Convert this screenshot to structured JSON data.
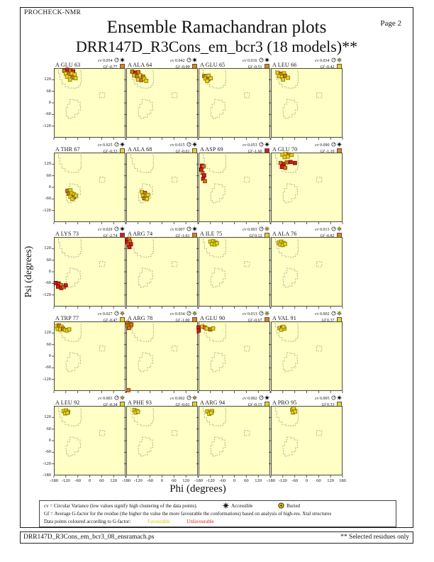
{
  "page": {
    "app_name": "PROCHECK-NMR",
    "page_label": "Page  2",
    "title": "Ensemble Ramachandran plots",
    "subtitle": "DRR147D_R3Cons_em_bcr3 (18 models)**"
  },
  "axes": {
    "xlabel": "Phi (degrees)",
    "ylabel": "Psi (degrees)",
    "x_ticks": [
      -180,
      -120,
      -60,
      0,
      60,
      120
    ],
    "x_end_tick": 180,
    "y_ticks": [
      120,
      60,
      0,
      -60,
      -120
    ],
    "y_bottom_tick": -180
  },
  "stat_labels": {
    "cv": "cv",
    "gf": "Gf"
  },
  "legend": {
    "cv_text": "cv = Circular Variance (low values signify high clustering of the data points).",
    "accessible_label": "Accessible",
    "buried_label": "Buried",
    "gf_text": "Gf = Average G-factor for the residue (the higher the value the more favourable the conformations) based on analysis of high-res. Xtal structures",
    "points_text": "Data points coloured according to G-factor:",
    "favourable_label": "Favourable",
    "unfavourable_label": "Unfavourable"
  },
  "footer": {
    "left": "DRR147D_R3Cons_em_bcr3_08_ensramach.ps",
    "right": "** Selected residues only"
  },
  "colors": {
    "plot_bg": "#FFFFC6",
    "plot_border": "#4A4A33",
    "region": "#A0A080",
    "fills": {
      "y": "#E8D21C",
      "o": "#D2791B",
      "r": "#D51C1C"
    },
    "strokes": {
      "y": "#8A7A00",
      "o": "#7A3E00",
      "r": "#7A0000"
    },
    "gf_square": {
      "y": "#E8D21C",
      "o": "#E08214",
      "r": "#D51C1C"
    },
    "buried_icon": "#E8C800"
  },
  "chart_data": {
    "type": "scatter",
    "layout": "4x5 small multiples (Ramachandran plot per residue, 18 models each)",
    "x_range": [
      -180,
      180
    ],
    "y_range": [
      -180,
      180
    ],
    "point_color_key": {
      "y": "favourable",
      "o": "intermediate",
      "r": "unfavourable"
    },
    "regions": {
      "beta": [
        [
          -152,
          180
        ],
        [
          -157,
          150
        ],
        [
          -150,
          120
        ],
        [
          -140,
          98
        ],
        [
          -125,
          84
        ],
        [
          -105,
          77
        ],
        [
          -85,
          76
        ],
        [
          -68,
          80
        ],
        [
          -55,
          90
        ],
        [
          -46,
          105
        ],
        [
          -42,
          125
        ],
        [
          -44,
          148
        ],
        [
          -42,
          162
        ],
        [
          -45,
          180
        ]
      ],
      "alpha": [
        [
          -100,
          18
        ],
        [
          -82,
          14
        ],
        [
          -62,
          4
        ],
        [
          -48,
          -14
        ],
        [
          -46,
          -36
        ],
        [
          -56,
          -58
        ],
        [
          -74,
          -74
        ],
        [
          -94,
          -80
        ],
        [
          -110,
          -68
        ],
        [
          -118,
          -48
        ],
        [
          -119,
          -26
        ],
        [
          -112,
          -6
        ]
      ],
      "l_alpha": [
        [
          50,
          52
        ],
        [
          76,
          52
        ],
        [
          76,
          26
        ],
        [
          50,
          26
        ]
      ]
    },
    "subplots": [
      {
        "label": "A GLU 63",
        "cv": "0.054",
        "gf": "-0.77",
        "access": "accessible",
        "gf_color": "o",
        "points": [
          [
            -128,
            166,
            "o"
          ],
          [
            -112,
            172,
            "r"
          ],
          [
            -97,
            168,
            "o"
          ],
          [
            -83,
            163,
            "r"
          ],
          [
            -120,
            152,
            "y"
          ],
          [
            -104,
            149,
            "o"
          ],
          [
            -90,
            152,
            "y"
          ],
          [
            -76,
            147,
            "y"
          ],
          [
            -114,
            136,
            "y"
          ],
          [
            -87,
            131,
            "o"
          ],
          [
            -71,
            128,
            "y"
          ],
          [
            -99,
            120,
            "y"
          ]
        ]
      },
      {
        "label": "A ALA 64",
        "cv": "0.042",
        "gf": "-0.99",
        "access": "accessible",
        "gf_color": "o",
        "points": [
          [
            -150,
            162,
            "o"
          ],
          [
            -134,
            157,
            "r"
          ],
          [
            -119,
            159,
            "o"
          ],
          [
            -140,
            142,
            "y"
          ],
          [
            -126,
            139,
            "o"
          ],
          [
            -110,
            143,
            "y"
          ],
          [
            -95,
            136,
            "o"
          ],
          [
            -121,
            121,
            "y"
          ],
          [
            -104,
            118,
            "o"
          ],
          [
            -89,
            124,
            "y"
          ],
          [
            -79,
            114,
            "y"
          ]
        ]
      },
      {
        "label": "A GLU 65",
        "cv": "0.016",
        "gf": "-0.51",
        "access": "accessible",
        "gf_color": "o",
        "points": [
          [
            -151,
            139,
            "o"
          ],
          [
            -139,
            136,
            "y"
          ],
          [
            -129,
            141,
            "y"
          ],
          [
            -145,
            126,
            "y"
          ],
          [
            -131,
            122,
            "o"
          ],
          [
            -119,
            128,
            "y"
          ],
          [
            -137,
            114,
            "y"
          ]
        ]
      },
      {
        "label": "A LEU 66",
        "cv": "0.034",
        "gf": "-0.42",
        "access": "buried",
        "gf_color": "y",
        "points": [
          [
            -146,
            156,
            "y"
          ],
          [
            -130,
            151,
            "o"
          ],
          [
            -114,
            153,
            "y"
          ],
          [
            -139,
            138,
            "y"
          ],
          [
            -124,
            134,
            "y"
          ],
          [
            -109,
            140,
            "o"
          ],
          [
            -94,
            130,
            "y"
          ],
          [
            -119,
            121,
            "y"
          ]
        ]
      },
      {
        "label": "A THR 67",
        "cv": "0.025",
        "gf": "-0.33",
        "access": "accessible",
        "gf_color": "y",
        "points": [
          [
            -112,
            -18,
            "o"
          ],
          [
            -97,
            -15,
            "y"
          ],
          [
            -106,
            -33,
            "o"
          ],
          [
            -91,
            -30,
            "y"
          ],
          [
            -80,
            -36,
            "y"
          ],
          [
            -97,
            -49,
            "y"
          ],
          [
            -79,
            -51,
            "o"
          ],
          [
            -70,
            -43,
            "y"
          ],
          [
            -88,
            -60,
            "y"
          ]
        ]
      },
      {
        "label": "A ALA 68",
        "cv": "0.015",
        "gf": "-0.61",
        "access": "accessible",
        "gf_color": "y",
        "points": [
          [
            -101,
            -24,
            "y"
          ],
          [
            -86,
            -29,
            "o"
          ],
          [
            -96,
            -44,
            "y"
          ],
          [
            -81,
            -47,
            "y"
          ],
          [
            -71,
            -39,
            "y"
          ],
          [
            -89,
            -57,
            "o"
          ],
          [
            -76,
            -60,
            "y"
          ]
        ]
      },
      {
        "label": "A ASP 69",
        "cv": "0.053",
        "gf": "-1.60",
        "access": "accessible",
        "gf_color": "r",
        "points": [
          [
            -163,
            112,
            "r"
          ],
          [
            -155,
            108,
            "o"
          ],
          [
            -166,
            92,
            "r"
          ],
          [
            -160,
            74,
            "o"
          ],
          [
            -152,
            62,
            "r"
          ],
          [
            -157,
            45,
            "r"
          ],
          [
            -148,
            32,
            "o"
          ]
        ]
      },
      {
        "label": "A GLU 70",
        "cv": "0.090",
        "gf": "-1.10",
        "access": "accessible",
        "gf_color": "o",
        "points": [
          [
            -122,
            169,
            "y"
          ],
          [
            -106,
            173,
            "y"
          ],
          [
            -91,
            170,
            "o"
          ],
          [
            -76,
            168,
            "y"
          ],
          [
            -111,
            156,
            "y"
          ],
          [
            -95,
            159,
            "y"
          ],
          [
            -131,
            126,
            "o"
          ],
          [
            -116,
            121,
            "r"
          ],
          [
            -100,
            129,
            "o"
          ],
          [
            -81,
            131,
            "r"
          ],
          [
            -124,
            106,
            "r"
          ],
          [
            -108,
            101,
            "o"
          ],
          [
            -59,
            126,
            "r"
          ]
        ]
      },
      {
        "label": "A LYS 73",
        "cv": "0.029",
        "gf": "-2.74",
        "access": "accessible",
        "gf_color": "r",
        "points": [
          [
            -171,
            -58,
            "r"
          ],
          [
            -156,
            -61,
            "r"
          ],
          [
            -145,
            -69,
            "o"
          ],
          [
            -159,
            -77,
            "r"
          ],
          [
            -143,
            -84,
            "r"
          ],
          [
            -130,
            -79,
            "o"
          ],
          [
            -121,
            -70,
            "r"
          ]
        ]
      },
      {
        "label": "A ARG 74",
        "cv": "0.007",
        "gf": "-1.61",
        "access": "accessible",
        "gf_color": "o",
        "points": [
          [
            -176,
            166,
            "r"
          ],
          [
            -165,
            171,
            "o"
          ],
          [
            -173,
            152,
            "r"
          ],
          [
            -161,
            156,
            "o"
          ],
          [
            -169,
            139,
            "o"
          ],
          [
            -156,
            143,
            "r"
          ],
          [
            -164,
            128,
            "r"
          ]
        ]
      },
      {
        "label": "A ILE 75",
        "cv": "0.003",
        "gf": "0.12",
        "access": "buried",
        "gf_color": "y",
        "points": [
          [
            -121,
            156,
            "y"
          ],
          [
            -106,
            159,
            "y"
          ],
          [
            -95,
            151,
            "y"
          ],
          [
            -113,
            143,
            "y"
          ],
          [
            -99,
            141,
            "y"
          ],
          [
            -88,
            148,
            "y"
          ]
        ]
      },
      {
        "label": "A ALA 76",
        "cv": "0.013",
        "gf": "-0.82",
        "access": "buried",
        "gf_color": "o",
        "points": [
          [
            -141,
            151,
            "y"
          ],
          [
            -128,
            156,
            "y"
          ],
          [
            -117,
            149,
            "y"
          ],
          [
            -133,
            141,
            "y"
          ],
          [
            -121,
            138,
            "y"
          ],
          [
            -109,
            144,
            "y"
          ]
        ]
      },
      {
        "label": "A TRP 77",
        "cv": "0.027",
        "gf": "-0.47",
        "access": "buried",
        "gf_color": "y",
        "points": [
          [
            -169,
            156,
            "y"
          ],
          [
            -155,
            159,
            "o"
          ],
          [
            -142,
            153,
            "y"
          ],
          [
            -161,
            141,
            "y"
          ],
          [
            -148,
            138,
            "y"
          ],
          [
            -134,
            143,
            "o"
          ],
          [
            -124,
            136,
            "y"
          ],
          [
            -114,
            133,
            "y"
          ],
          [
            -103,
            139,
            "y"
          ]
        ]
      },
      {
        "label": "A ARG 78",
        "cv": "0.034",
        "gf": "-1.00",
        "access": "buried",
        "gf_color": "o",
        "points": [
          [
            -173,
            173,
            "o"
          ],
          [
            -162,
            169,
            "o"
          ],
          [
            -171,
            158,
            "o"
          ],
          [
            -158,
            155,
            "y"
          ],
          [
            -166,
            146,
            "o"
          ],
          [
            -154,
            164,
            "o"
          ],
          [
            -169,
            -176,
            "o"
          ]
        ]
      },
      {
        "label": "A GLU 90",
        "cv": "0.013",
        "gf": "-0.67",
        "access": "buried",
        "gf_color": "o",
        "points": [
          [
            -180,
            149,
            "r"
          ],
          [
            -179,
            133,
            "r"
          ],
          [
            -161,
            153,
            "y"
          ],
          [
            -149,
            149,
            "o"
          ],
          [
            -139,
            143,
            "y"
          ],
          [
            -121,
            139,
            "o"
          ],
          [
            -107,
            144,
            "y"
          ]
        ]
      },
      {
        "label": "A VAL 91",
        "cv": "0.002",
        "gf": "0.37",
        "access": "buried",
        "gf_color": "y",
        "points": [
          [
            -136,
            146,
            "y"
          ],
          [
            -123,
            149,
            "o"
          ],
          [
            -112,
            143,
            "y"
          ],
          [
            -128,
            137,
            "y"
          ],
          [
            -117,
            152,
            "y"
          ]
        ]
      },
      {
        "label": "A LEU 92",
        "cv": "0.003",
        "gf": "-0.34",
        "access": "buried",
        "gf_color": "y",
        "points": [
          [
            -131,
            153,
            "y"
          ],
          [
            -119,
            156,
            "y"
          ],
          [
            -108,
            149,
            "y"
          ],
          [
            -123,
            141,
            "y"
          ],
          [
            -112,
            144,
            "y"
          ]
        ]
      },
      {
        "label": "A PHE 93",
        "cv": "0.002",
        "gf": "-0.01",
        "access": "buried",
        "gf_color": "y",
        "points": [
          [
            -139,
            159,
            "y"
          ],
          [
            -127,
            153,
            "y"
          ],
          [
            -133,
            146,
            "y"
          ],
          [
            -121,
            150,
            "y"
          ]
        ]
      },
      {
        "label": "A ARG 94",
        "cv": "0.002",
        "gf": "-0.15",
        "access": "accessible",
        "gf_color": "y",
        "points": [
          [
            -136,
            151,
            "y"
          ],
          [
            -123,
            149,
            "y"
          ],
          [
            -112,
            153,
            "y"
          ],
          [
            -126,
            139,
            "y"
          ],
          [
            -116,
            144,
            "y"
          ]
        ]
      },
      {
        "label": "A PRO 95",
        "cv": "0.005",
        "gf": "0.33",
        "access": "accessible",
        "gf_color": "y",
        "points": [
          [
            -73,
            161,
            "y"
          ],
          [
            -62,
            156,
            "y"
          ],
          [
            -69,
            146,
            "y"
          ],
          [
            -58,
            151,
            "y"
          ],
          [
            -66,
            168,
            "y"
          ]
        ]
      }
    ]
  }
}
